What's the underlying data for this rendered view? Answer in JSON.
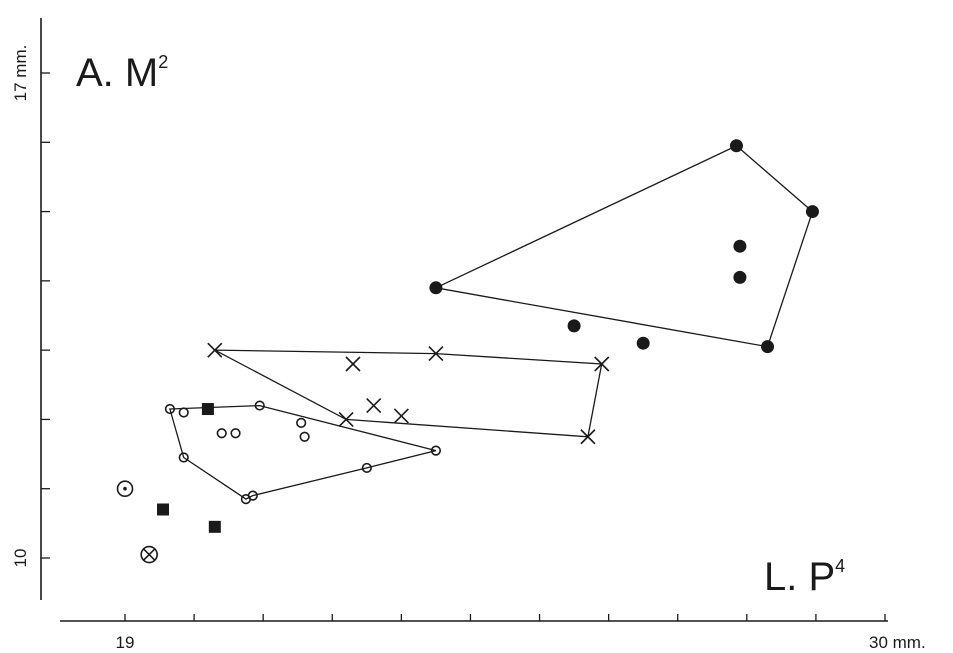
{
  "chart_data": {
    "type": "scatter",
    "title": "",
    "xlabel": "L. P",
    "xlabel_sup": "4",
    "ylabel": "A. M",
    "ylabel_sup": "2",
    "xlim": [
      19,
      30
    ],
    "ylim": [
      10,
      17
    ],
    "x_ticks": [
      19,
      20,
      21,
      22,
      23,
      24,
      25,
      26,
      27,
      28,
      29,
      30
    ],
    "y_ticks": [
      10,
      11,
      12,
      13,
      14,
      15,
      16,
      17
    ],
    "x_tick_labels": [
      {
        "value": 19,
        "text": "19"
      },
      {
        "value": 30,
        "text": "30 mm."
      }
    ],
    "y_tick_labels": [
      {
        "value": 10,
        "text": "10"
      },
      {
        "value": 17,
        "text": "17 mm."
      }
    ],
    "grid": false,
    "series": [
      {
        "marker": "filled-circle",
        "points": [
          [
            23.5,
            13.9
          ],
          [
            27.85,
            15.95
          ],
          [
            28.95,
            15.0
          ],
          [
            27.9,
            14.05
          ],
          [
            27.9,
            14.5
          ],
          [
            26.5,
            13.1
          ],
          [
            28.3,
            13.05
          ],
          [
            25.5,
            13.35
          ]
        ],
        "hull": [
          [
            23.5,
            13.9
          ],
          [
            27.85,
            15.95
          ],
          [
            28.95,
            15.0
          ],
          [
            28.3,
            13.05
          ]
        ]
      },
      {
        "marker": "cross",
        "points": [
          [
            20.3,
            13.0
          ],
          [
            23.5,
            12.95
          ],
          [
            25.9,
            12.8
          ],
          [
            25.7,
            11.75
          ],
          [
            22.2,
            12.0
          ],
          [
            23.0,
            12.05
          ],
          [
            22.6,
            12.2
          ],
          [
            22.3,
            12.8
          ]
        ],
        "hull": [
          [
            20.3,
            13.0
          ],
          [
            23.5,
            12.95
          ],
          [
            25.9,
            12.8
          ],
          [
            25.7,
            11.75
          ],
          [
            22.2,
            12.0
          ]
        ]
      },
      {
        "marker": "open-circle",
        "points": [
          [
            19.65,
            12.15
          ],
          [
            19.85,
            12.1
          ],
          [
            20.95,
            12.2
          ],
          [
            21.55,
            11.95
          ],
          [
            19.85,
            11.45
          ],
          [
            20.75,
            10.85
          ],
          [
            20.85,
            10.9
          ],
          [
            22.5,
            11.3
          ],
          [
            23.5,
            11.55
          ],
          [
            20.4,
            11.8
          ],
          [
            20.6,
            11.8
          ],
          [
            21.6,
            11.75
          ]
        ],
        "hull": [
          [
            19.65,
            12.15
          ],
          [
            20.95,
            12.2
          ],
          [
            23.5,
            11.55
          ],
          [
            22.5,
            11.3
          ],
          [
            20.85,
            10.9
          ],
          [
            20.75,
            10.85
          ],
          [
            19.85,
            11.45
          ]
        ]
      },
      {
        "marker": "filled-square",
        "points": [
          [
            20.2,
            12.15
          ],
          [
            19.55,
            10.7
          ],
          [
            20.3,
            10.45
          ]
        ]
      },
      {
        "marker": "dotted-circle",
        "points": [
          [
            19.0,
            11.0
          ]
        ]
      },
      {
        "marker": "crossed-circle",
        "points": [
          [
            19.35,
            10.05
          ]
        ]
      }
    ]
  }
}
